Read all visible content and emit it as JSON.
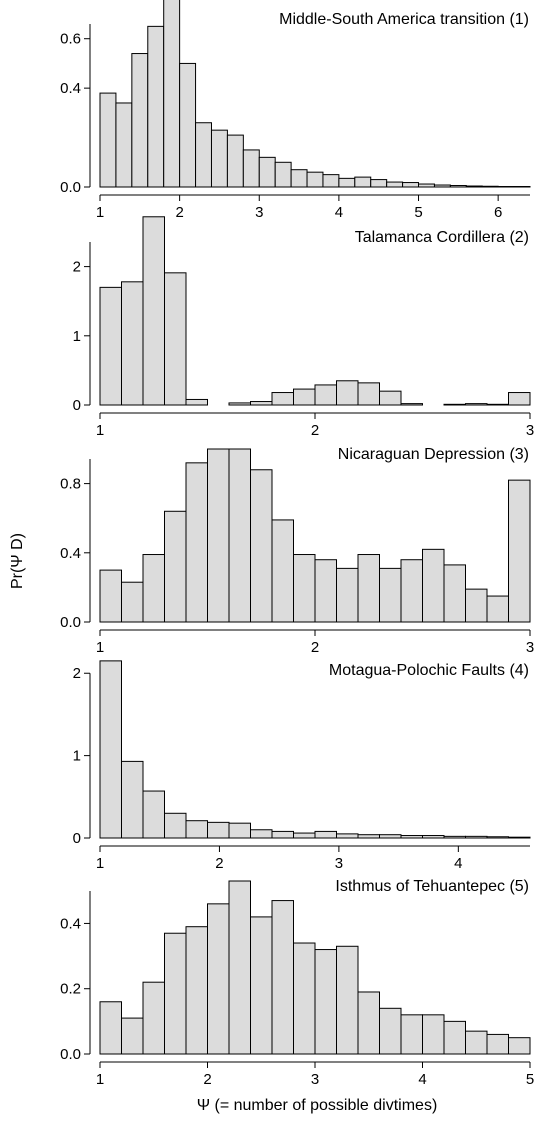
{
  "figure": {
    "ylabel": "Pr(Ψ D)",
    "xlabel": "Ψ  (= number of possible divtimes)",
    "bar_fill": "#dcdcdc",
    "bar_stroke": "#000000"
  },
  "chart_data": [
    {
      "type": "bar",
      "title": "Middle-South America transition (1)",
      "xlim": [
        1,
        6.4
      ],
      "ylim": [
        0,
        0.7
      ],
      "xticks": [
        1,
        2,
        3,
        4,
        5,
        6
      ],
      "yticks": [
        0.0,
        0.4,
        0.6
      ],
      "ytick_labels": [
        "0.0",
        "0.4",
        "0.6"
      ],
      "bin_edges": [
        1.0,
        1.2,
        1.4,
        1.6,
        1.8,
        2.0,
        2.2,
        2.4,
        2.6,
        2.8,
        3.0,
        3.2,
        3.4,
        3.6,
        3.8,
        4.0,
        4.2,
        4.4,
        4.6,
        4.8,
        5.0,
        5.2,
        5.4,
        5.6,
        5.8,
        6.0,
        6.2,
        6.4
      ],
      "values": [
        0.38,
        0.34,
        0.54,
        0.65,
        0.76,
        0.5,
        0.26,
        0.23,
        0.21,
        0.15,
        0.12,
        0.1,
        0.07,
        0.06,
        0.05,
        0.035,
        0.04,
        0.03,
        0.02,
        0.018,
        0.012,
        0.008,
        0.006,
        0.004,
        0.003,
        0.002,
        0.002
      ]
    },
    {
      "type": "bar",
      "title": "Talamanca Cordillera (2)",
      "xlim": [
        1,
        3
      ],
      "ylim": [
        0,
        2.5
      ],
      "xticks": [
        1,
        2,
        3
      ],
      "yticks": [
        0,
        1,
        2
      ],
      "ytick_labels": [
        "0",
        "1",
        "2"
      ],
      "bin_edges": [
        1.0,
        1.1,
        1.2,
        1.3,
        1.4,
        1.5,
        1.6,
        1.7,
        1.8,
        1.9,
        2.0,
        2.1,
        2.2,
        2.3,
        2.4,
        2.5,
        2.6,
        2.7,
        2.8,
        2.9,
        3.0
      ],
      "values": [
        1.7,
        1.78,
        2.72,
        1.91,
        0.08,
        0.0,
        0.03,
        0.05,
        0.18,
        0.23,
        0.29,
        0.35,
        0.32,
        0.2,
        0.02,
        0.0,
        0.01,
        0.02,
        0.01,
        0.18
      ]
    },
    {
      "type": "bar",
      "title": "Nicaraguan Depression (3)",
      "xlim": [
        1,
        3
      ],
      "ylim": [
        0,
        1.0
      ],
      "xticks": [
        1,
        2,
        3
      ],
      "yticks": [
        0.0,
        0.4,
        0.8
      ],
      "ytick_labels": [
        "0.0",
        "0.4",
        "0.8"
      ],
      "bin_edges": [
        1.0,
        1.1,
        1.2,
        1.3,
        1.4,
        1.5,
        1.6,
        1.7,
        1.8,
        1.9,
        2.0,
        2.1,
        2.2,
        2.3,
        2.4,
        2.5,
        2.6,
        2.7,
        2.8,
        2.9,
        3.0
      ],
      "values": [
        0.3,
        0.23,
        0.39,
        0.64,
        0.92,
        1.0,
        1.0,
        0.88,
        0.59,
        0.39,
        0.36,
        0.31,
        0.39,
        0.31,
        0.36,
        0.42,
        0.33,
        0.19,
        0.15,
        0.82
      ]
    },
    {
      "type": "bar",
      "title": "Motagua-Polochic Faults (4)",
      "xlim": [
        1,
        4.6
      ],
      "ylim": [
        0,
        2.1
      ],
      "xticks": [
        1,
        2,
        3,
        4
      ],
      "yticks": [
        0,
        1,
        2
      ],
      "ytick_labels": [
        "0",
        "1",
        "2"
      ],
      "bin_edges": [
        1.0,
        1.18,
        1.36,
        1.54,
        1.72,
        1.9,
        2.08,
        2.26,
        2.44,
        2.62,
        2.8,
        2.98,
        3.16,
        3.34,
        3.52,
        3.7,
        3.88,
        4.06,
        4.24,
        4.42,
        4.6
      ],
      "values": [
        2.15,
        0.93,
        0.57,
        0.3,
        0.21,
        0.19,
        0.18,
        0.1,
        0.08,
        0.06,
        0.08,
        0.05,
        0.04,
        0.04,
        0.03,
        0.03,
        0.02,
        0.02,
        0.015,
        0.01
      ]
    },
    {
      "type": "bar",
      "title": "Isthmus of Tehuantepec (5)",
      "xlim": [
        1,
        5
      ],
      "ylim": [
        0,
        0.53
      ],
      "xticks": [
        1,
        2,
        3,
        4,
        5
      ],
      "yticks": [
        0.0,
        0.2,
        0.4
      ],
      "ytick_labels": [
        "0.0",
        "0.2",
        "0.4"
      ],
      "bin_edges": [
        1.0,
        1.2,
        1.4,
        1.6,
        1.8,
        2.0,
        2.2,
        2.4,
        2.6,
        2.8,
        3.0,
        3.2,
        3.4,
        3.6,
        3.8,
        4.0,
        4.2,
        4.4,
        4.6,
        4.8,
        5.0
      ],
      "values": [
        0.16,
        0.11,
        0.22,
        0.37,
        0.39,
        0.46,
        0.53,
        0.42,
        0.47,
        0.34,
        0.32,
        0.33,
        0.19,
        0.14,
        0.12,
        0.12,
        0.1,
        0.07,
        0.06,
        0.05
      ]
    }
  ]
}
